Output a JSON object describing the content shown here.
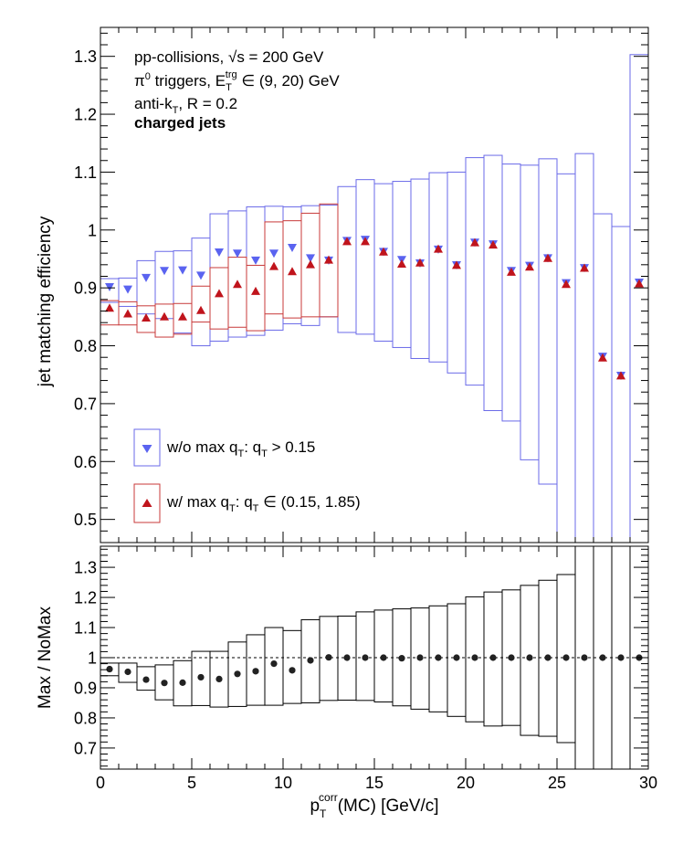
{
  "chart_data": [
    {
      "type": "scatter",
      "panel": "top",
      "ylabel": "jet matching efficiency",
      "xlim": [
        0,
        30
      ],
      "ylim": [
        0.46,
        1.35
      ],
      "y_ticks": [
        0.5,
        0.6,
        0.7,
        0.8,
        0.9,
        1,
        1.1,
        1.2,
        1.3
      ],
      "y_tick_labels": [
        "0.5",
        "0.6",
        "0.7",
        "0.8",
        "0.9",
        "1",
        "1.1",
        "1.2",
        "1.3"
      ],
      "annotations": {
        "line1": "pp-collisions, √s = 200 GeV",
        "line2_prefix": "π",
        "line2_sup": "0",
        "line2_mid": " triggers, E",
        "line2_sub": "T",
        "line2_sup2": "trg",
        "line2_suffix": " ∈ (9, 20) GeV",
        "line3_prefix": "anti-k",
        "line3_sub": "T",
        "line3_suffix": ", R = 0.2",
        "line4": "charged jets"
      },
      "legend_placement": "bottom-left",
      "series": [
        {
          "name": "w/o max q_T: q_T > 0.15",
          "legend": {
            "pre": "w/o max q",
            "sub1": "T",
            "mid": ": q",
            "sub2": "T",
            "post": " > 0.15"
          },
          "color": "#5a63f0",
          "box_color": "#6a6ae8",
          "marker": "triangle-down",
          "x": [
            0.5,
            1.5,
            2.5,
            3.5,
            4.5,
            5.5,
            6.5,
            7.5,
            8.5,
            9.5,
            10.5,
            11.5,
            12.5,
            13.5,
            14.5,
            15.5,
            16.5,
            17.5,
            18.5,
            19.5,
            20.5,
            21.5,
            22.5,
            23.5,
            24.5,
            25.5,
            26.5,
            27.5,
            28.5,
            29.5
          ],
          "y": [
            0.901,
            0.897,
            0.917,
            0.929,
            0.93,
            0.921,
            0.961,
            0.959,
            0.947,
            0.959,
            0.969,
            0.951,
            0.947,
            0.981,
            0.983,
            0.962,
            0.948,
            0.942,
            0.966,
            0.939,
            0.978,
            0.975,
            0.929,
            0.938,
            0.951,
            0.908,
            0.934,
            0.781,
            0.748,
            0.909
          ],
          "sys_low": [
            0.875,
            0.868,
            0.855,
            0.847,
            0.822,
            0.8,
            0.808,
            0.815,
            0.818,
            0.827,
            0.838,
            0.835,
            0.85,
            0.823,
            0.82,
            0.808,
            0.797,
            0.778,
            0.772,
            0.753,
            0.732,
            0.688,
            0.67,
            0.603,
            0.561,
            0.412,
            0.328,
            0.184,
            0.026,
            -0.176
          ],
          "sys_high": [
            0.916,
            0.917,
            0.947,
            0.963,
            0.964,
            0.986,
            1.028,
            1.033,
            1.04,
            1.041,
            1.04,
            1.042,
            1.043,
            1.075,
            1.087,
            1.08,
            1.084,
            1.088,
            1.099,
            1.1,
            1.125,
            1.129,
            1.114,
            1.112,
            1.123,
            1.097,
            1.132,
            1.028,
            1.006,
            1.303
          ]
        },
        {
          "name": "w/ max q_T: q_T ∈ (0.15, 1.85)",
          "legend": {
            "pre": "w/ max q",
            "sub1": "T",
            "mid": ": q",
            "sub2": "T",
            "post": " ∈ (0.15, 1.85)"
          },
          "color": "#c0141c",
          "box_color": "#c83a3a",
          "marker": "triangle-up",
          "x": [
            0.5,
            1.5,
            2.5,
            3.5,
            4.5,
            5.5,
            6.5,
            7.5,
            8.5,
            9.5,
            10.5,
            11.5,
            12.5,
            13.5,
            14.5,
            15.5,
            16.5,
            17.5,
            18.5,
            19.5,
            20.5,
            21.5,
            22.5,
            23.5,
            24.5,
            25.5,
            26.5,
            27.5,
            28.5,
            29.5
          ],
          "y": [
            0.866,
            0.856,
            0.849,
            0.851,
            0.851,
            0.862,
            0.891,
            0.907,
            0.895,
            0.938,
            0.929,
            0.941,
            0.949,
            0.981,
            0.981,
            0.963,
            0.942,
            0.944,
            0.968,
            0.94,
            0.979,
            0.975,
            0.928,
            0.937,
            0.952,
            0.907,
            0.935,
            0.78,
            0.749,
            0.908
          ],
          "sys_low": [
            0.836,
            0.836,
            0.823,
            0.815,
            0.82,
            0.841,
            0.829,
            0.832,
            0.826,
            0.855,
            0.848,
            0.85,
            0.85
          ],
          "sys_high": [
            0.878,
            0.876,
            0.869,
            0.872,
            0.873,
            0.903,
            0.935,
            0.953,
            0.939,
            1.014,
            1.016,
            1.029,
            1.045
          ]
        }
      ]
    },
    {
      "type": "scatter",
      "panel": "bottom",
      "ylabel": "Max / NoMax",
      "xlabel_main": "p",
      "xlabel_sub": "T",
      "xlabel_sup": "corr",
      "xlabel_rest": "(MC) [GeV/c]",
      "xlim": [
        0,
        30
      ],
      "ylim": [
        0.63,
        1.37
      ],
      "x_ticks": [
        0,
        5,
        10,
        15,
        20,
        25,
        30
      ],
      "x_tick_labels": [
        "0",
        "5",
        "10",
        "15",
        "20",
        "25",
        "30"
      ],
      "y_ticks": [
        0.7,
        0.8,
        0.9,
        1,
        1.1,
        1.2,
        1.3
      ],
      "y_tick_labels": [
        "0.7",
        "0.8",
        "0.9",
        "1",
        "1.1",
        "1.2",
        "1.3"
      ],
      "reference_line": 1.0,
      "series": [
        {
          "name": "",
          "color": "#222222",
          "marker": "circle",
          "x": [
            0.5,
            1.5,
            2.5,
            3.5,
            4.5,
            5.5,
            6.5,
            7.5,
            8.5,
            9.5,
            10.5,
            11.5,
            12.5,
            13.5,
            14.5,
            15.5,
            16.5,
            17.5,
            18.5,
            19.5,
            20.5,
            21.5,
            22.5,
            23.5,
            24.5,
            25.5,
            26.5,
            27.5,
            28.5,
            29.5
          ],
          "y": [
            0.962,
            0.953,
            0.927,
            0.916,
            0.917,
            0.935,
            0.929,
            0.946,
            0.955,
            0.98,
            0.958,
            0.991,
            1.001,
            1.0,
            1.0,
            1.0,
            0.998,
            1.0,
            1.0,
            1.0,
            1.0,
            1.0,
            1.0,
            1.0,
            1.0,
            1.0,
            1.0,
            1.0,
            1.0,
            1.0
          ],
          "sys_low": [
            0.94,
            0.918,
            0.892,
            0.86,
            0.84,
            0.841,
            0.836,
            0.838,
            0.842,
            0.842,
            0.848,
            0.85,
            0.858,
            0.859,
            0.858,
            0.853,
            0.84,
            0.829,
            0.82,
            0.805,
            0.787,
            0.773,
            0.775,
            0.742,
            0.739,
            0.718,
            -1.0,
            -1.0,
            -1.0,
            -1.0
          ],
          "sys_high": [
            0.982,
            0.982,
            0.97,
            0.976,
            0.99,
            1.021,
            1.021,
            1.052,
            1.076,
            1.1,
            1.09,
            1.126,
            1.137,
            1.138,
            1.152,
            1.158,
            1.162,
            1.165,
            1.172,
            1.179,
            1.202,
            1.218,
            1.225,
            1.24,
            1.257,
            1.276,
            3.0,
            3.0,
            3.0,
            3.0
          ]
        }
      ]
    }
  ]
}
